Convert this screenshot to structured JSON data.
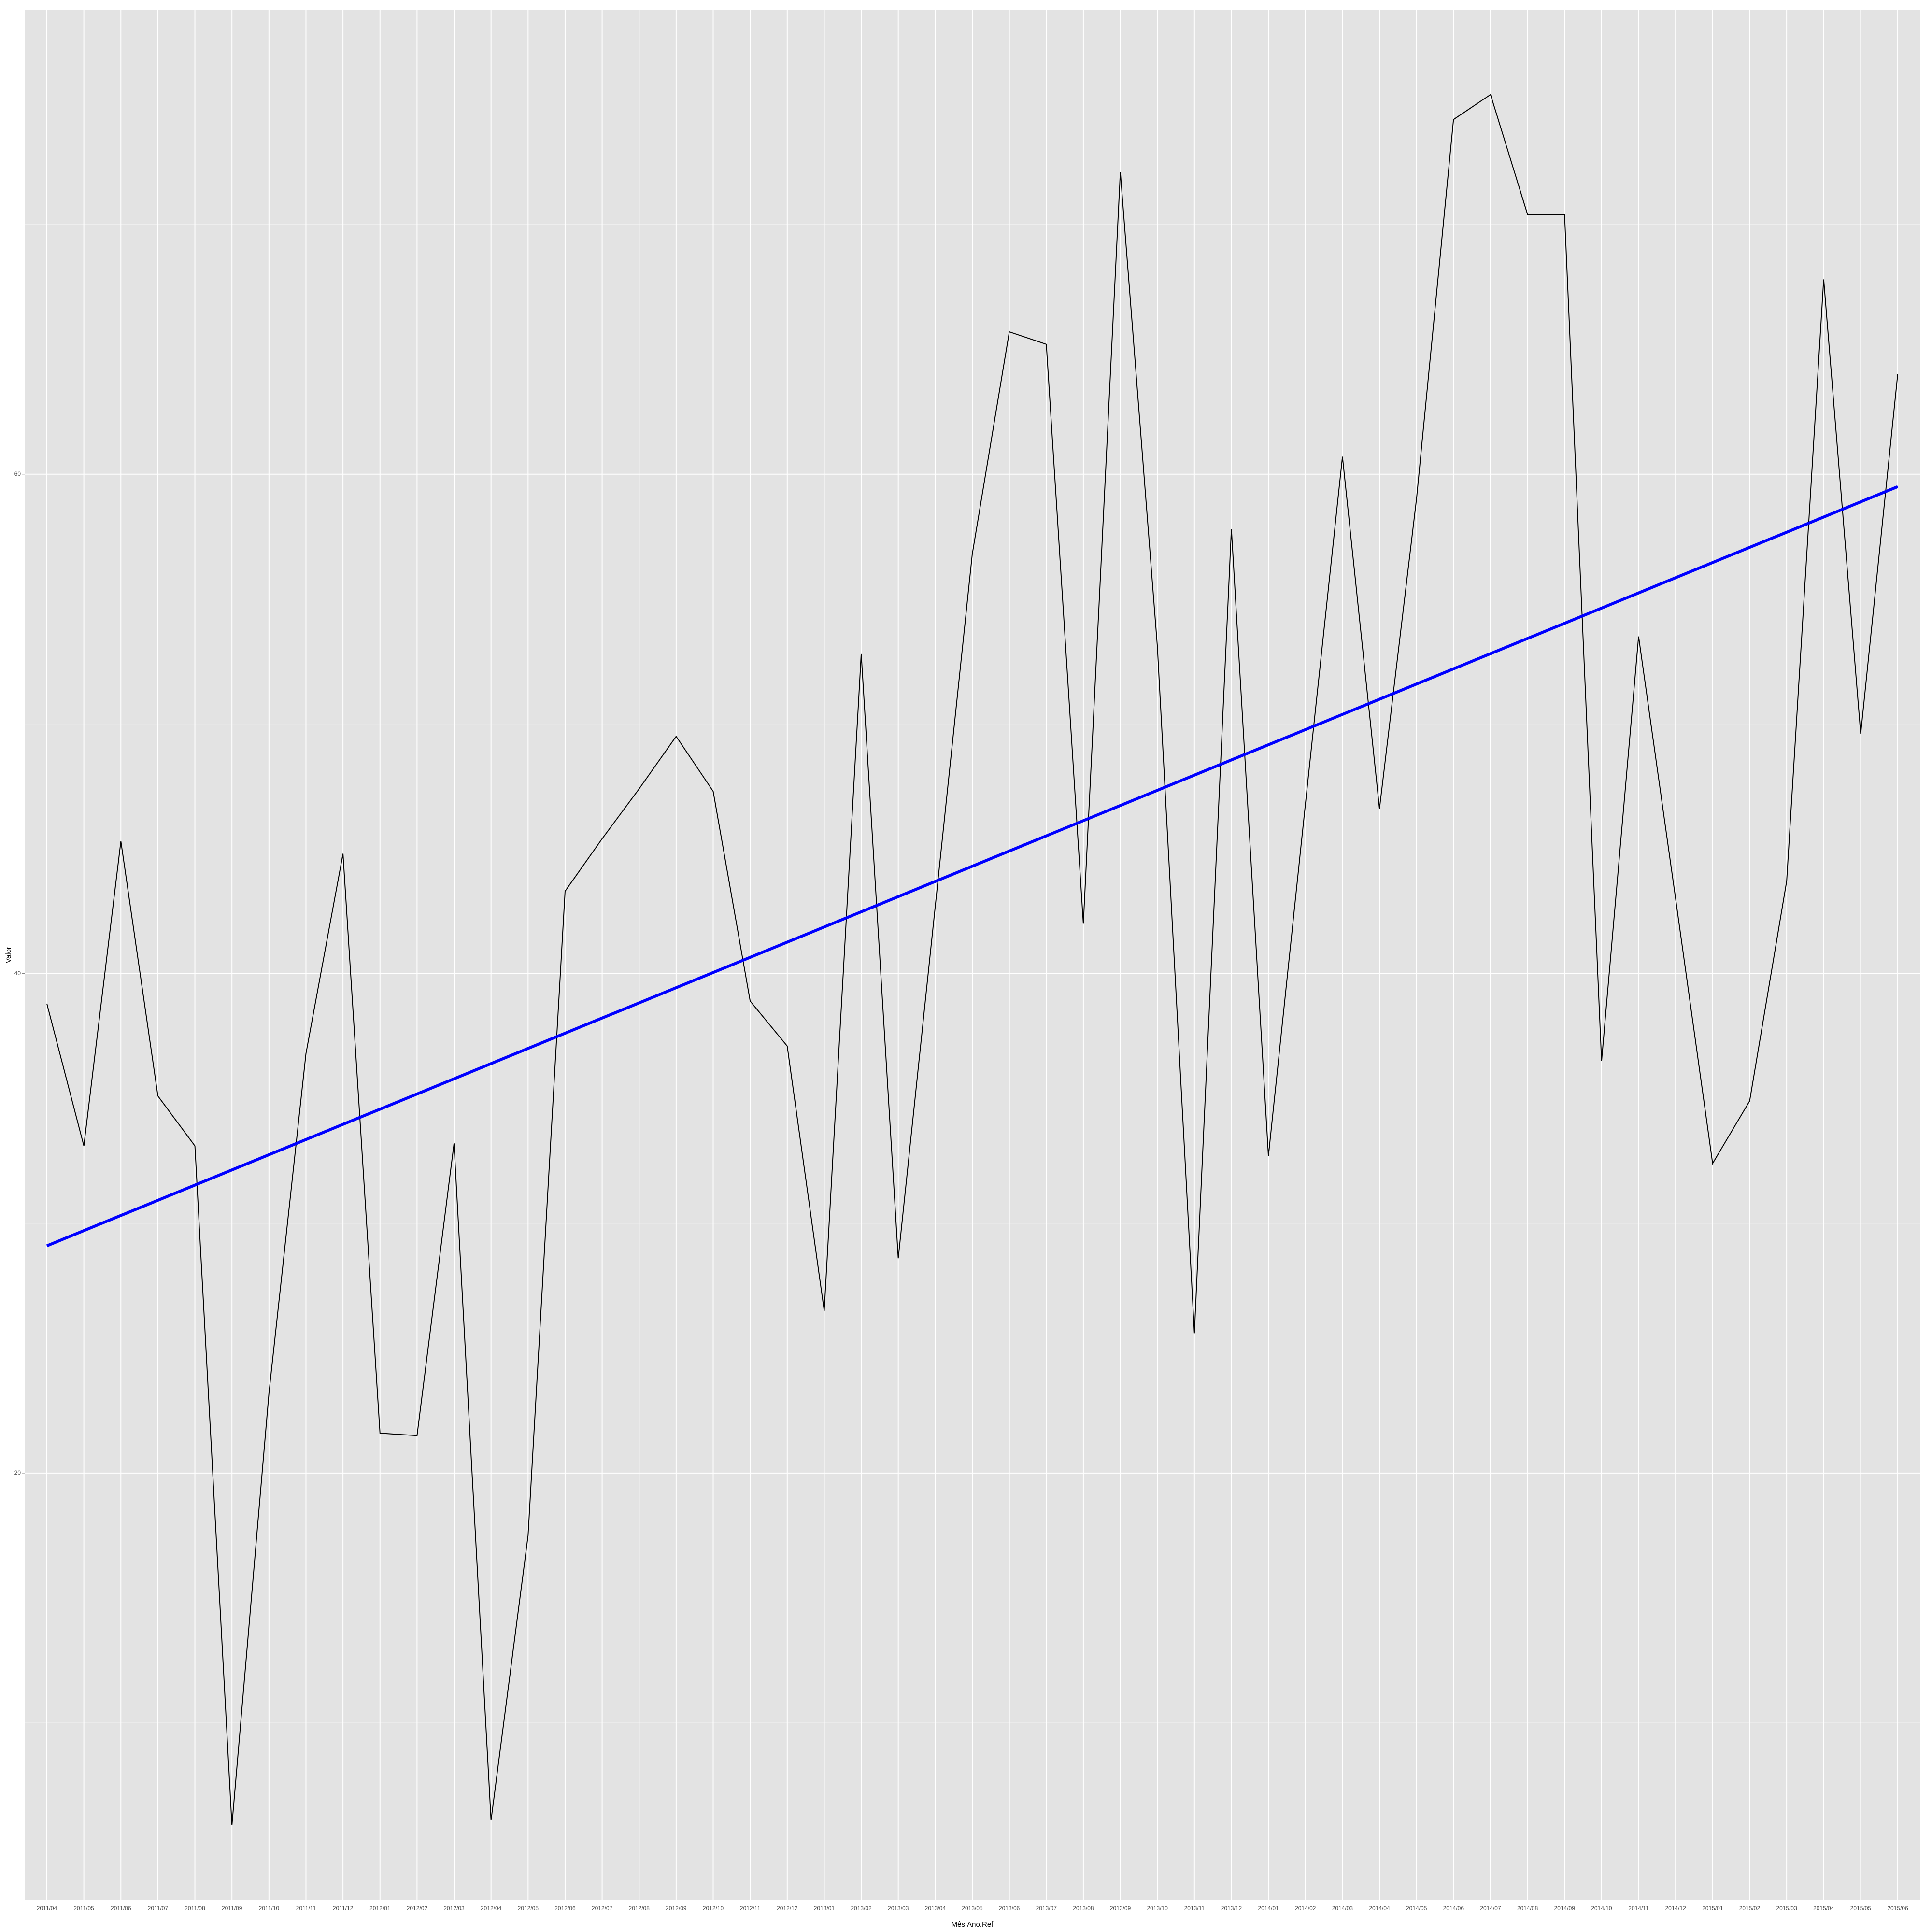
{
  "chart_data": {
    "type": "line",
    "x_label": "Mês.Ano.Ref",
    "y_label": "Valor",
    "categories": [
      "2011/04",
      "2011/05",
      "2011/06",
      "2011/07",
      "2011/08",
      "2011/09",
      "2011/10",
      "2011/11",
      "2011/12",
      "2012/01",
      "2012/02",
      "2012/03",
      "2012/04",
      "2012/05",
      "2012/06",
      "2012/07",
      "2012/08",
      "2012/09",
      "2012/10",
      "2012/11",
      "2012/12",
      "2013/01",
      "2013/02",
      "2013/03",
      "2013/04",
      "2013/05",
      "2013/06",
      "2013/07",
      "2013/08",
      "2013/09",
      "2013/10",
      "2013/11",
      "2013/12",
      "2014/01",
      "2014/02",
      "2014/03",
      "2014/04",
      "2014/05",
      "2014/06",
      "2014/07",
      "2014/08",
      "2014/09",
      "2014/10",
      "2014/11",
      "2014/12",
      "2015/01",
      "2015/02",
      "2015/03",
      "2015/04",
      "2015/05",
      "2015/06"
    ],
    "series": [
      {
        "color": "#000000",
        "values": [
          38.8,
          33.1,
          45.3,
          35.1,
          33.1,
          5.9,
          23.2,
          36.8,
          44.8,
          21.6,
          21.5,
          33.2,
          6.1,
          17.5,
          43.3,
          45.4,
          47.4,
          49.5,
          47.3,
          38.9,
          37.1,
          26.5,
          52.8,
          28.6,
          42.7,
          56.8,
          65.7,
          65.2,
          42.0,
          72.1,
          53.1,
          25.6,
          57.8,
          32.7,
          46.8,
          60.7,
          46.6,
          59.0,
          74.2,
          75.2,
          70.4,
          70.4,
          36.5,
          53.5,
          43.0,
          32.4,
          34.9,
          43.7,
          67.8,
          49.6,
          64.0
        ]
      }
    ],
    "trend_line": {
      "color": "#0000ff",
      "values": [
        29.1,
        59.5
      ]
    },
    "ylim": [
      2.9,
      78.6
    ],
    "yticks": [
      20,
      40,
      60
    ],
    "grid": true
  }
}
